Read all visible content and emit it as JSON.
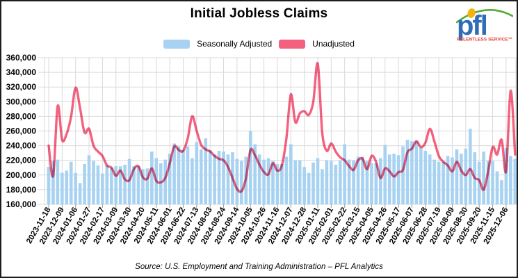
{
  "title": "Initial Jobless Claims",
  "legend": {
    "items": [
      {
        "label": "Seasonally Adjusted",
        "color": "#a7d2f1"
      },
      {
        "label": "Unadjusted",
        "color": "#f4617e"
      }
    ]
  },
  "footer": "Source: U.S. Employment and Training Administration – PFL Analytics",
  "logo": {
    "text": "pfl",
    "tagline": "RELENTLESS SERVICE",
    "trademark": "™",
    "text_color": "#2f6db8",
    "tagline_color": "#e03a2f",
    "swoosh_color": "#52aa32",
    "dot_color": "#f5b40d"
  },
  "chart_data": {
    "type": "bar+line",
    "title": "Initial Jobless Claims",
    "xlabel": "",
    "ylabel": "",
    "grid": true,
    "legend_position": "top-center",
    "y_axis": {
      "min": 160000,
      "max": 360000,
      "step": 20000,
      "format": "comma"
    },
    "x_tick_labels": [
      "2023-11-18",
      "2023-12-09",
      "2024-01-06",
      "2024-01-27",
      "2024-02-17",
      "2024-03-09",
      "2024-03-30",
      "2024-04-20",
      "2024-05-11",
      "2024-06-01",
      "2024-06-22",
      "2024-07-13",
      "2024-08-03",
      "2024-08-24",
      "2024-09-14",
      "2024-10-05",
      "2024-10-26",
      "2024-11-16",
      "2024-12-07",
      "2024-12-28",
      "2025-01-11",
      "2025-02-01",
      "2025-02-22",
      "2025-03-15",
      "2025-04-05",
      "2025-04-26",
      "2025-05-17",
      "2025-06-07",
      "2025-06-28",
      "2025-07-19",
      "2025-08-09",
      "2025-08-30",
      "2025-09-20",
      "2025-11-15",
      "2025-12-06"
    ],
    "ticks_every": 3,
    "series": [
      {
        "name": "Seasonally Adjusted",
        "type": "bar",
        "color": "#a7d2f1",
        "values": [
          211000,
          219000,
          221000,
          203000,
          206000,
          218000,
          203000,
          189000,
          215000,
          227000,
          219000,
          213000,
          202000,
          213000,
          210000,
          212000,
          212000,
          214000,
          222000,
          212000,
          212000,
          208000,
          209000,
          232000,
          223000,
          216000,
          221000,
          229000,
          243000,
          239000,
          234000,
          239000,
          223000,
          245000,
          235000,
          250000,
          234000,
          228000,
          233000,
          232000,
          228000,
          231000,
          222000,
          219000,
          225000,
          260000,
          242000,
          228000,
          221000,
          223000,
          219000,
          215000,
          215000,
          225000,
          242000,
          220000,
          220000,
          211000,
          203000,
          217000,
          223000,
          208000,
          220000,
          219000,
          214000,
          220000,
          242000,
          221000,
          220000,
          225000,
          225000,
          219000,
          216000,
          216000,
          223000,
          241000,
          228000,
          229000,
          227000,
          239000,
          248000,
          246000,
          246000,
          237000,
          233000,
          228000,
          221000,
          218000,
          218000,
          226000,
          224000,
          235000,
          229000,
          236000,
          263000,
          231000,
          218000,
          232000,
          219000,
          219000,
          205000,
          193000,
          237000,
          226000,
          222000
        ]
      },
      {
        "name": "Unadjusted",
        "type": "line",
        "color": "#f4617e",
        "values": [
          240000,
          199000,
          294000,
          248000,
          256000,
          280000,
          319000,
          291000,
          258000,
          263000,
          240000,
          232000,
          226000,
          213000,
          210000,
          199000,
          206000,
          194000,
          193000,
          208000,
          212000,
          197000,
          195000,
          209000,
          192000,
          190000,
          196000,
          216000,
          239000,
          234000,
          233000,
          250000,
          280000,
          260000,
          241000,
          235000,
          232000,
          226000,
          222000,
          220000,
          211000,
          196000,
          181000,
          178000,
          196000,
          234000,
          227000,
          214000,
          204000,
          201000,
          216000,
          206000,
          213000,
          250000,
          310000,
          272000,
          284000,
          287000,
          282000,
          300000,
          352000,
          258000,
          233000,
          243000,
          232000,
          224000,
          220000,
          212000,
          207000,
          220000,
          222000,
          208000,
          226000,
          218000,
          196000,
          209000,
          205000,
          198000,
          204000,
          207000,
          231000,
          236000,
          246000,
          238000,
          244000,
          263000,
          246000,
          226000,
          218000,
          213000,
          205000,
          218000,
          206000,
          200000,
          208000,
          196000,
          193000,
          180000,
          205000,
          238000,
          228000,
          248000,
          205000,
          315000,
          228000
        ]
      }
    ]
  }
}
